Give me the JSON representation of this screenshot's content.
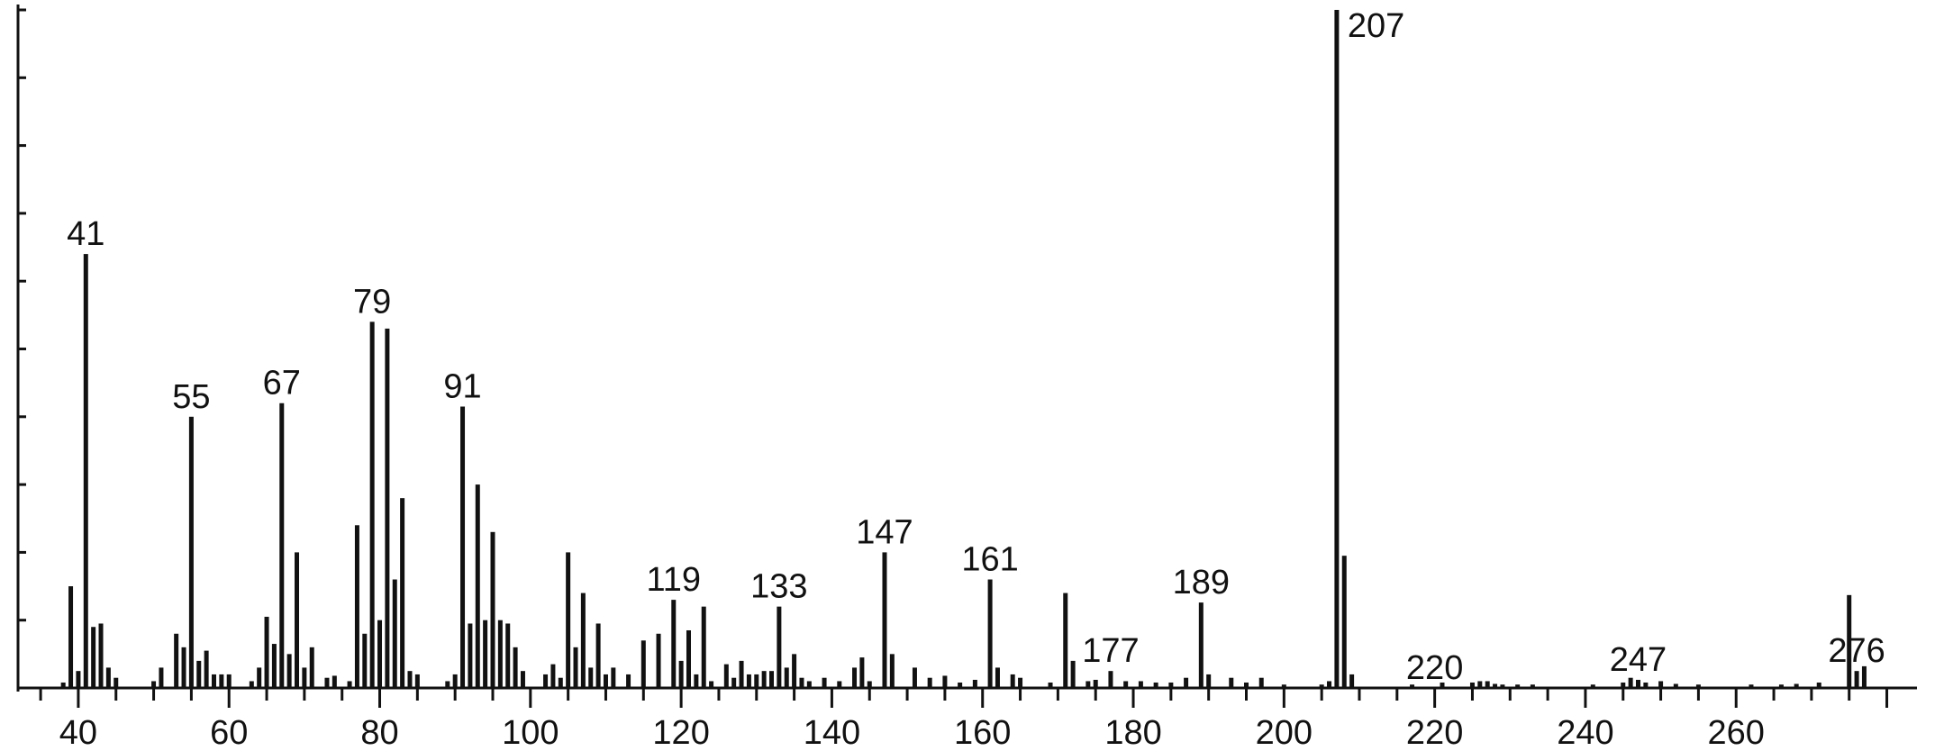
{
  "chart_data": {
    "type": "bar",
    "title": "",
    "xlabel": "",
    "ylabel": "",
    "xlim": [
      32,
      284
    ],
    "ylim": [
      0,
      100
    ],
    "x_ticks": [
      40,
      60,
      80,
      100,
      120,
      140,
      160,
      180,
      200,
      220,
      240,
      260
    ],
    "y_tick_count": 10,
    "grid": false,
    "bar_color": "#111111",
    "peak_labels": [
      41,
      55,
      67,
      79,
      91,
      119,
      133,
      147,
      161,
      177,
      189,
      207,
      220,
      247,
      276
    ],
    "peaks": [
      [
        38,
        0.8
      ],
      [
        39,
        15
      ],
      [
        40,
        2.5
      ],
      [
        41,
        64
      ],
      [
        42,
        9
      ],
      [
        43,
        9.5
      ],
      [
        44,
        3
      ],
      [
        45,
        1.5
      ],
      [
        50,
        1
      ],
      [
        51,
        3
      ],
      [
        53,
        8
      ],
      [
        54,
        6
      ],
      [
        55,
        40
      ],
      [
        56,
        4
      ],
      [
        57,
        5.5
      ],
      [
        58,
        2
      ],
      [
        59,
        2
      ],
      [
        60,
        2
      ],
      [
        63,
        1
      ],
      [
        64,
        3
      ],
      [
        65,
        10.5
      ],
      [
        66,
        6.5
      ],
      [
        67,
        42
      ],
      [
        68,
        5
      ],
      [
        69,
        20
      ],
      [
        70,
        3
      ],
      [
        71,
        6
      ],
      [
        73,
        1.5
      ],
      [
        74,
        1.8
      ],
      [
        76,
        1
      ],
      [
        77,
        24
      ],
      [
        78,
        8
      ],
      [
        79,
        54
      ],
      [
        80,
        10
      ],
      [
        81,
        53
      ],
      [
        82,
        16
      ],
      [
        83,
        28
      ],
      [
        84,
        2.5
      ],
      [
        85,
        2
      ],
      [
        89,
        1
      ],
      [
        90,
        2
      ],
      [
        91,
        41.5
      ],
      [
        92,
        9.5
      ],
      [
        93,
        30
      ],
      [
        94,
        10
      ],
      [
        95,
        23
      ],
      [
        96,
        10
      ],
      [
        97,
        9.5
      ],
      [
        98,
        6
      ],
      [
        99,
        2.5
      ],
      [
        102,
        2
      ],
      [
        103,
        3.5
      ],
      [
        104,
        1.5
      ],
      [
        105,
        20
      ],
      [
        106,
        6
      ],
      [
        107,
        14
      ],
      [
        108,
        3
      ],
      [
        109,
        9.5
      ],
      [
        110,
        2
      ],
      [
        111,
        3
      ],
      [
        113,
        2
      ],
      [
        115,
        7
      ],
      [
        117,
        8
      ],
      [
        119,
        13
      ],
      [
        120,
        4
      ],
      [
        121,
        8.5
      ],
      [
        122,
        2
      ],
      [
        123,
        12
      ],
      [
        124,
        1
      ],
      [
        126,
        3.5
      ],
      [
        127,
        1.5
      ],
      [
        128,
        4
      ],
      [
        129,
        2
      ],
      [
        130,
        2
      ],
      [
        131,
        2.5
      ],
      [
        132,
        2.5
      ],
      [
        133,
        12
      ],
      [
        134,
        3
      ],
      [
        135,
        5
      ],
      [
        136,
        1.5
      ],
      [
        137,
        1
      ],
      [
        139,
        1.5
      ],
      [
        141,
        1
      ],
      [
        143,
        3
      ],
      [
        144,
        4.5
      ],
      [
        145,
        1
      ],
      [
        147,
        20
      ],
      [
        148,
        5
      ],
      [
        151,
        3
      ],
      [
        153,
        1.5
      ],
      [
        155,
        1.8
      ],
      [
        157,
        0.8
      ],
      [
        159,
        1.2
      ],
      [
        161,
        16
      ],
      [
        162,
        3
      ],
      [
        164,
        2
      ],
      [
        165,
        1.5
      ],
      [
        169,
        0.8
      ],
      [
        171,
        14
      ],
      [
        172,
        4
      ],
      [
        174,
        1
      ],
      [
        175,
        1.2
      ],
      [
        177,
        2.5
      ],
      [
        179,
        1
      ],
      [
        181,
        1
      ],
      [
        183,
        0.8
      ],
      [
        185,
        0.8
      ],
      [
        187,
        1.5
      ],
      [
        189,
        12.6
      ],
      [
        190,
        2
      ],
      [
        193,
        1.5
      ],
      [
        195,
        0.8
      ],
      [
        197,
        1.5
      ],
      [
        200,
        0.5
      ],
      [
        205,
        0.5
      ],
      [
        206,
        1
      ],
      [
        207,
        100
      ],
      [
        208,
        19.5
      ],
      [
        209,
        2
      ],
      [
        217,
        0.5
      ],
      [
        221,
        0.8
      ],
      [
        225,
        0.8
      ],
      [
        226,
        1
      ],
      [
        227,
        1
      ],
      [
        228,
        0.6
      ],
      [
        229,
        0.5
      ],
      [
        231,
        0.5
      ],
      [
        233,
        0.5
      ],
      [
        241,
        0.5
      ],
      [
        245,
        0.8
      ],
      [
        246,
        1.5
      ],
      [
        247,
        1.2
      ],
      [
        248,
        0.8
      ],
      [
        250,
        1
      ],
      [
        252,
        0.6
      ],
      [
        255,
        0.5
      ],
      [
        262,
        0.5
      ],
      [
        266,
        0.5
      ],
      [
        268,
        0.6
      ],
      [
        271,
        0.8
      ],
      [
        275,
        13.7
      ],
      [
        276,
        2.5
      ],
      [
        277,
        3.2
      ]
    ]
  }
}
